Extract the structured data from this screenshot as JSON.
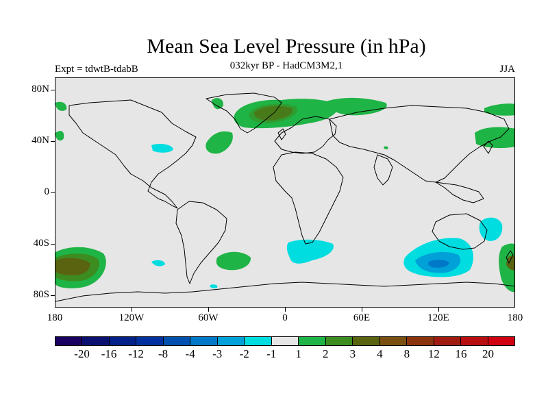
{
  "title": "Mean Sea Level Pressure (in hPa)",
  "subtitle": "032kyr BP - HadCM3M2,1",
  "experiment": "Expt = tdwtB-tdabB",
  "season": "JJA",
  "lat_labels": [
    "80N",
    "40N",
    "0",
    "40S",
    "80S"
  ],
  "lon_labels": [
    "180",
    "120W",
    "60W",
    "0",
    "60E",
    "120E",
    "180"
  ],
  "colorbar": {
    "colors": [
      "#1a0060",
      "#0a1070",
      "#00208a",
      "#0030a0",
      "#0050b0",
      "#0078c8",
      "#00a0d8",
      "#00dde0",
      "#e6e6e6",
      "#1fb446",
      "#3c8c20",
      "#5a6410",
      "#7a5010",
      "#8c3410",
      "#a01c10",
      "#b80e10",
      "#d00010"
    ],
    "labels": [
      "-20",
      "-16",
      "-12",
      "-8",
      "-4",
      "-3",
      "-2",
      "-1",
      "1",
      "2",
      "3",
      "4",
      "8",
      "12",
      "16",
      "20"
    ]
  },
  "palette": {
    "background": "#e6e6e6",
    "positive_1": "#1fb446",
    "positive_2": "#3c8c20",
    "positive_3": "#5a6410",
    "negative_1": "#00dde0",
    "negative_2": "#00a0d8",
    "negative_3": "#0078c8"
  }
}
